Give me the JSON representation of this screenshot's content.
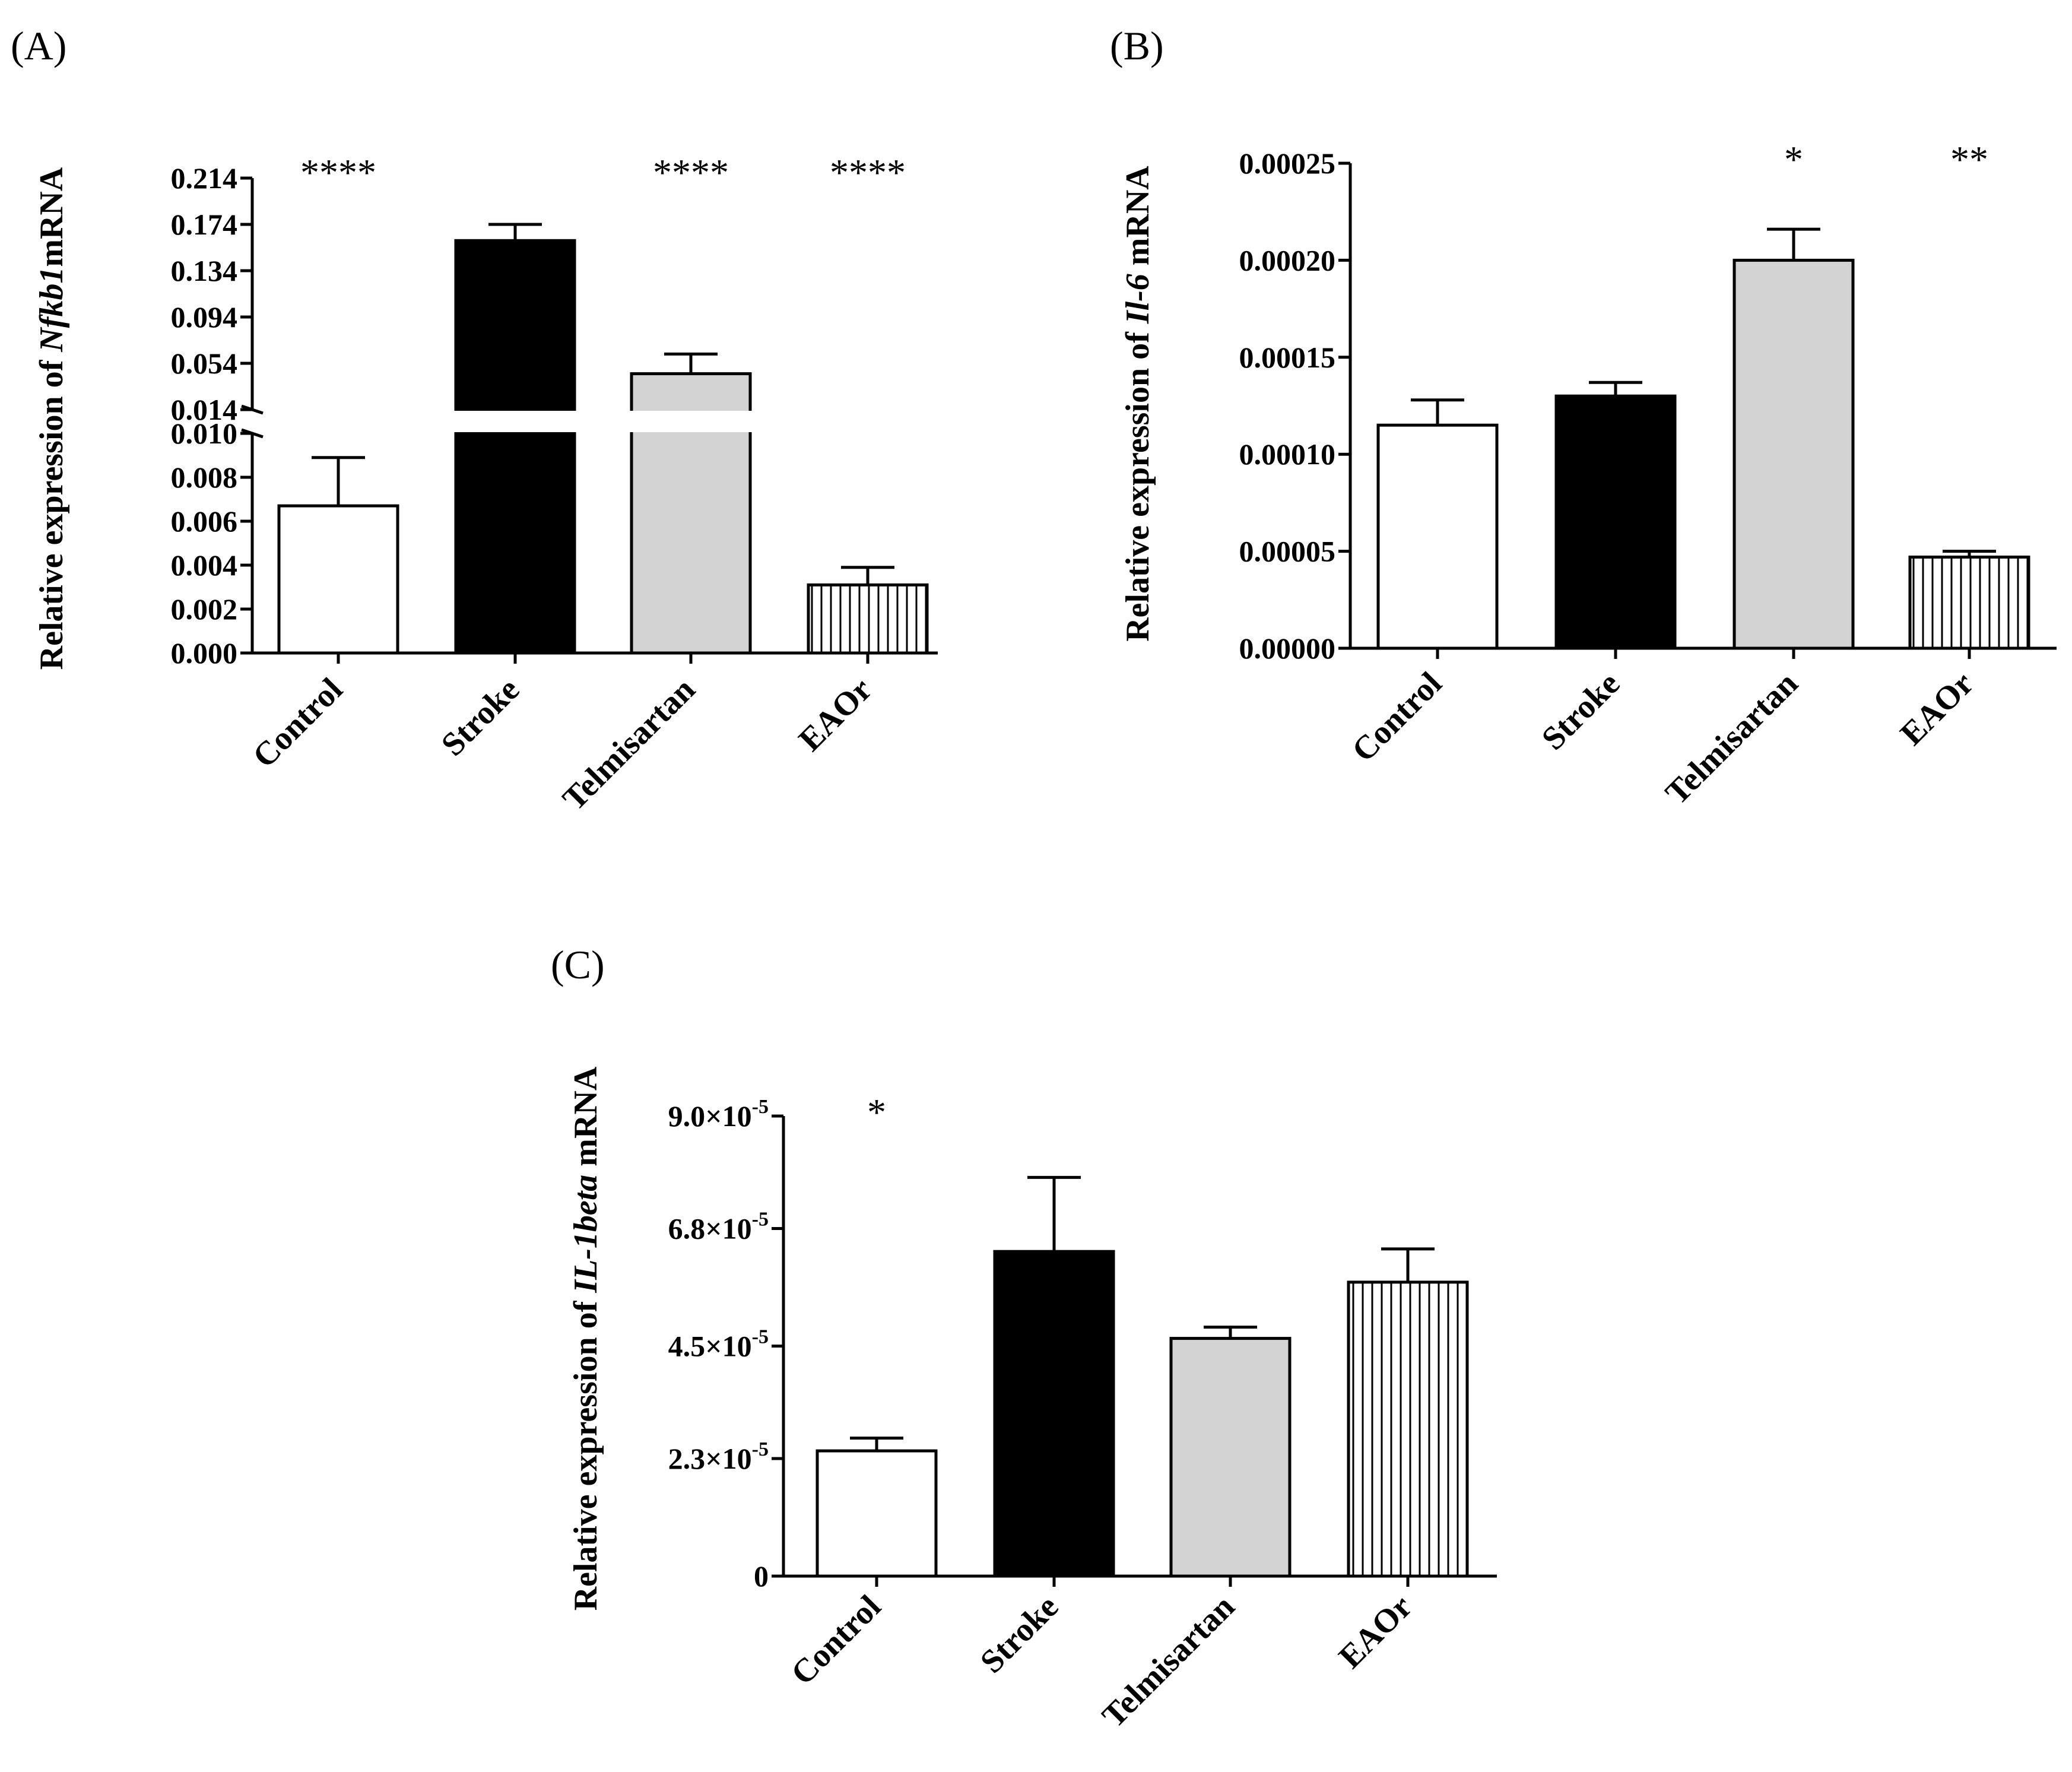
{
  "colors": {
    "control": "#ffffff",
    "stroke": "#000000",
    "telmisartan": "#d3d3d3",
    "eaor": "hatched-vertical",
    "axis": "#000000"
  },
  "chart_data": [
    {
      "type": "bar",
      "panel": "(A)",
      "ylabel_prefix": "Relative expression of ",
      "ylabel_gene": "Nfkb1",
      "ylabel_suffix": "mRNA",
      "categories": [
        "Control",
        "Stroke",
        "Telmisartan",
        "EAOr"
      ],
      "values": [
        0.0067,
        0.16,
        0.045,
        0.0031
      ],
      "errors": [
        0.0022,
        0.014,
        0.017,
        0.0008
      ],
      "significance": [
        "****",
        "",
        "****",
        "****"
      ],
      "axis_break": true,
      "lower_range": [
        0,
        0.01
      ],
      "lower_ticks": [
        "0.000",
        "0.002",
        "0.004",
        "0.006",
        "0.008",
        "0.010"
      ],
      "upper_range": [
        0.014,
        0.214
      ],
      "upper_ticks": [
        "0.014",
        "0.054",
        "0.094",
        "0.134",
        "0.174",
        "0.214"
      ]
    },
    {
      "type": "bar",
      "panel": "(B)",
      "ylabel_prefix": "Relative expression of ",
      "ylabel_gene": "Il-6",
      "ylabel_suffix": " mRNA",
      "categories": [
        "Control",
        "Stroke",
        "Telmisartan",
        "EAOr"
      ],
      "values": [
        0.000115,
        0.00013,
        0.0002,
        4.7e-05
      ],
      "errors": [
        1.3e-05,
        7e-06,
        1.6e-05,
        3e-06
      ],
      "significance": [
        "",
        "",
        "*",
        "**"
      ],
      "ylim": [
        0,
        0.00025
      ],
      "ticks": [
        "0.00000",
        "0.00005",
        "0.00010",
        "0.00015",
        "0.00020",
        "0.00025"
      ]
    },
    {
      "type": "bar",
      "panel": "(C)",
      "ylabel_prefix": "Relative expression of ",
      "ylabel_gene": "IL-1beta",
      "ylabel_suffix": " mRNA",
      "categories": [
        "Control",
        "Stroke",
        "Telmisartan",
        "EAOr"
      ],
      "values": [
        2.45e-05,
        6.35e-05,
        4.65e-05,
        5.75e-05
      ],
      "errors": [
        2.5e-06,
        1.45e-05,
        2.2e-06,
        6.5e-06
      ],
      "significance": [
        "*",
        "",
        "",
        ""
      ],
      "ylim": [
        0,
        9e-05
      ],
      "tick_values": [
        0,
        2.3e-05,
        4.5e-05,
        6.8e-05,
        9e-05
      ],
      "ticks": [
        {
          "mantissa": "0",
          "exp": ""
        },
        {
          "mantissa": "2.3×10",
          "exp": "-5"
        },
        {
          "mantissa": "4.5×10",
          "exp": "-5"
        },
        {
          "mantissa": "6.8×10",
          "exp": "-5"
        },
        {
          "mantissa": "9.0×10",
          "exp": "-5"
        }
      ]
    }
  ]
}
